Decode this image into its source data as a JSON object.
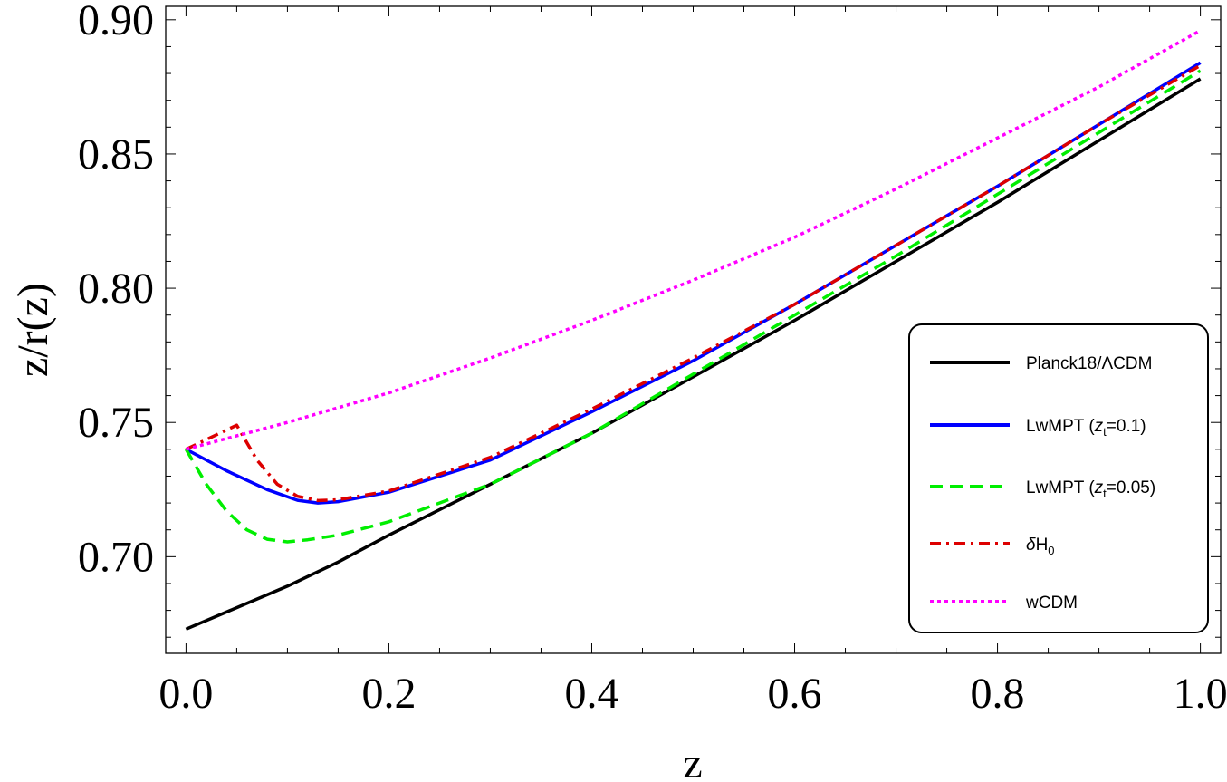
{
  "chart_data": {
    "type": "line",
    "title": "",
    "xlabel": "z",
    "ylabel": "z/r(z)",
    "xlim": [
      -0.02,
      1.02
    ],
    "ylim": [
      0.664,
      0.905
    ],
    "xticks": [
      0.0,
      0.2,
      0.4,
      0.6,
      0.8,
      1.0
    ],
    "xtick_labels": [
      "0.0",
      "0.2",
      "0.4",
      "0.6",
      "0.8",
      "1.0"
    ],
    "yticks": [
      0.7,
      0.75,
      0.8,
      0.85,
      0.9
    ],
    "ytick_labels": [
      "0.70",
      "0.75",
      "0.80",
      "0.85",
      "0.90"
    ],
    "grid": false,
    "legend_position": "right",
    "series": [
      {
        "name": "Planck18/ΛCDM",
        "color": "#000000",
        "style": "solid",
        "x": [
          0.0,
          0.05,
          0.1,
          0.15,
          0.2,
          0.3,
          0.4,
          0.5,
          0.6,
          0.7,
          0.8,
          0.9,
          1.0
        ],
        "y": [
          0.673,
          0.681,
          0.689,
          0.698,
          0.708,
          0.727,
          0.746,
          0.767,
          0.788,
          0.81,
          0.832,
          0.855,
          0.878
        ]
      },
      {
        "name": "LwMPT (z_t=0.1)",
        "color": "#0000ff",
        "style": "solid",
        "x": [
          0.0,
          0.04,
          0.08,
          0.11,
          0.13,
          0.15,
          0.2,
          0.3,
          0.4,
          0.5,
          0.6,
          0.7,
          0.8,
          0.9,
          1.0
        ],
        "y": [
          0.74,
          0.732,
          0.725,
          0.721,
          0.72,
          0.7205,
          0.724,
          0.736,
          0.754,
          0.773,
          0.794,
          0.816,
          0.838,
          0.861,
          0.884
        ]
      },
      {
        "name": "LwMPT (z_t=0.05)",
        "color": "#00ee00",
        "style": "dashed",
        "x": [
          0.0,
          0.02,
          0.04,
          0.06,
          0.08,
          0.1,
          0.12,
          0.15,
          0.2,
          0.3,
          0.4,
          0.5,
          0.6,
          0.7,
          0.8,
          0.9,
          1.0
        ],
        "y": [
          0.74,
          0.727,
          0.717,
          0.71,
          0.7065,
          0.7055,
          0.7063,
          0.708,
          0.713,
          0.727,
          0.746,
          0.768,
          0.79,
          0.812,
          0.835,
          0.858,
          0.881
        ]
      },
      {
        "name": "δH0",
        "color": "#dd0000",
        "style": "dashdot",
        "x": [
          0.0,
          0.05,
          0.07,
          0.09,
          0.11,
          0.13,
          0.15,
          0.2,
          0.3,
          0.4,
          0.5,
          0.6,
          0.7,
          0.8,
          0.9,
          1.0
        ],
        "y": [
          0.74,
          0.749,
          0.736,
          0.727,
          0.7225,
          0.7209,
          0.7212,
          0.7245,
          0.737,
          0.755,
          0.774,
          0.794,
          0.816,
          0.838,
          0.861,
          0.883
        ]
      },
      {
        "name": "wCDM",
        "color": "#ff00ff",
        "style": "dotted",
        "x": [
          0.0,
          0.1,
          0.2,
          0.3,
          0.4,
          0.5,
          0.6,
          0.7,
          0.8,
          0.9,
          1.0
        ],
        "y": [
          0.74,
          0.75,
          0.761,
          0.774,
          0.788,
          0.803,
          0.819,
          0.837,
          0.856,
          0.875,
          0.896
        ]
      }
    ]
  },
  "legend": {
    "entries": [
      {
        "text": "Planck18/ΛCDM"
      },
      {
        "text": "LwMPT (",
        "italic": "z",
        "sub": "t",
        "tail": "=0.1)"
      },
      {
        "text": "LwMPT (",
        "italic": "z",
        "sub": "t",
        "tail": "=0.05)"
      },
      {
        "text": "",
        "italic": "δ",
        "plain": "H",
        "sub": "0",
        "tail": ""
      },
      {
        "text": "wCDM"
      }
    ]
  }
}
